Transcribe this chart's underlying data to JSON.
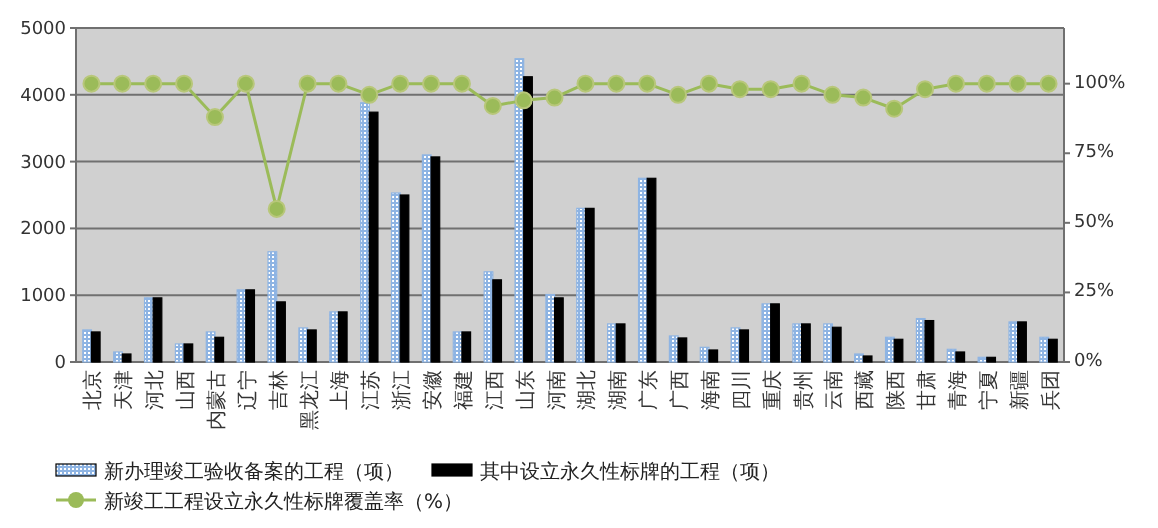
{
  "chart_data": {
    "type": "bar",
    "categories": [
      "北京",
      "天津",
      "河北",
      "山西",
      "内蒙古",
      "辽宁",
      "吉林",
      "黑龙江",
      "上海",
      "江苏",
      "浙江",
      "安徽",
      "福建",
      "江西",
      "山东",
      "河南",
      "湖北",
      "湖南",
      "广东",
      "广西",
      "海南",
      "四川",
      "重庆",
      "贵州",
      "云南",
      "西藏",
      "陕西",
      "甘肃",
      "青海",
      "宁夏",
      "新疆",
      "兵团"
    ],
    "series": [
      {
        "name": "新办理竣工验收备案的工程（项）",
        "color": "#8eb4e3",
        "values": [
          480,
          150,
          960,
          270,
          450,
          1080,
          1650,
          510,
          750,
          3880,
          2530,
          3100,
          450,
          1350,
          4540,
          1010,
          2300,
          570,
          2750,
          390,
          220,
          510,
          870,
          570,
          570,
          120,
          370,
          650,
          190,
          70,
          600,
          370
        ]
      },
      {
        "name": "其中设立永久性标牌的工程（项）",
        "color": "#000000",
        "values": [
          450,
          120,
          960,
          270,
          370,
          1080,
          900,
          480,
          750,
          3740,
          2500,
          3070,
          450,
          1230,
          4270,
          960,
          2300,
          570,
          2750,
          360,
          180,
          480,
          870,
          570,
          520,
          90,
          340,
          620,
          150,
          70,
          600,
          340
        ]
      },
      {
        "name": "新竣工工程设立永久性标牌覆盖率（%）",
        "type": "line",
        "axis": "y2",
        "color": "#9bbb59",
        "marker": "circle",
        "values": [
          100,
          100,
          100,
          100,
          88,
          100,
          55,
          100,
          100,
          96,
          100,
          100,
          100,
          92,
          94,
          95,
          100,
          100,
          100,
          96,
          100,
          98,
          98,
          100,
          96,
          95,
          91,
          98,
          100,
          100,
          100,
          100
        ]
      }
    ],
    "ylim": [
      0,
      5000
    ],
    "yticks": [
      0,
      1000,
      2000,
      3000,
      4000,
      5000
    ],
    "y2lim": [
      0,
      120
    ],
    "y2ticks": [
      {
        "value": 0,
        "label": "0%"
      },
      {
        "value": 25,
        "label": "25%"
      },
      {
        "value": 50,
        "label": "50%"
      },
      {
        "value": 75,
        "label": "75%"
      },
      {
        "value": 100,
        "label": "100%"
      }
    ],
    "grid": "y",
    "legend": "bottom"
  }
}
